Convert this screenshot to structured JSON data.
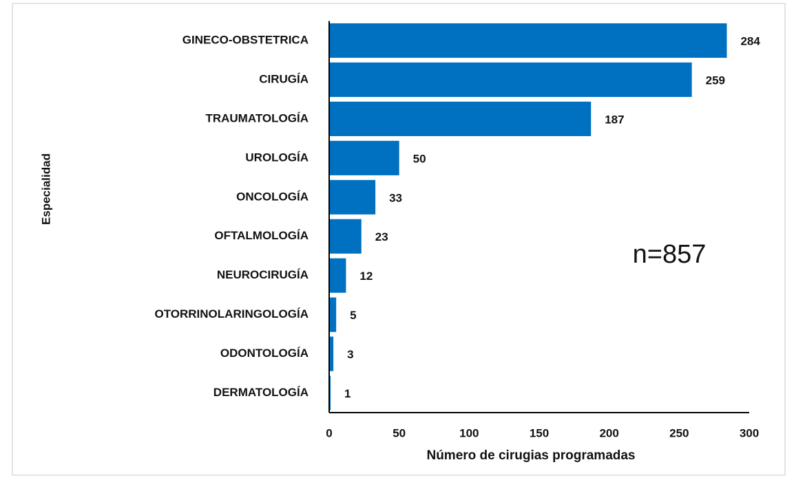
{
  "chart_data": {
    "type": "bar",
    "orientation": "horizontal",
    "categories": [
      "GINECO-OBSTETRICA",
      "CIRUGÍA",
      "TRAUMATOLOGÍA",
      "UROLOGÍA",
      "ONCOLOGÍA",
      "OFTALMOLOGÍA",
      "NEUROCIRUGÍA",
      "OTORRINOLARINGOLOGÍA",
      "ODONTOLOGÍA",
      "DERMATOLOGÍA"
    ],
    "values": [
      284,
      259,
      187,
      50,
      33,
      23,
      12,
      5,
      3,
      1
    ],
    "color": "#0070c0",
    "xlabel": "Número de cirugias programadas",
    "ylabel": "Especialidad",
    "annotation": "n=857",
    "xlim": [
      0,
      300
    ],
    "xticks": [
      0,
      50,
      100,
      150,
      200,
      250,
      300
    ],
    "grid": false
  }
}
